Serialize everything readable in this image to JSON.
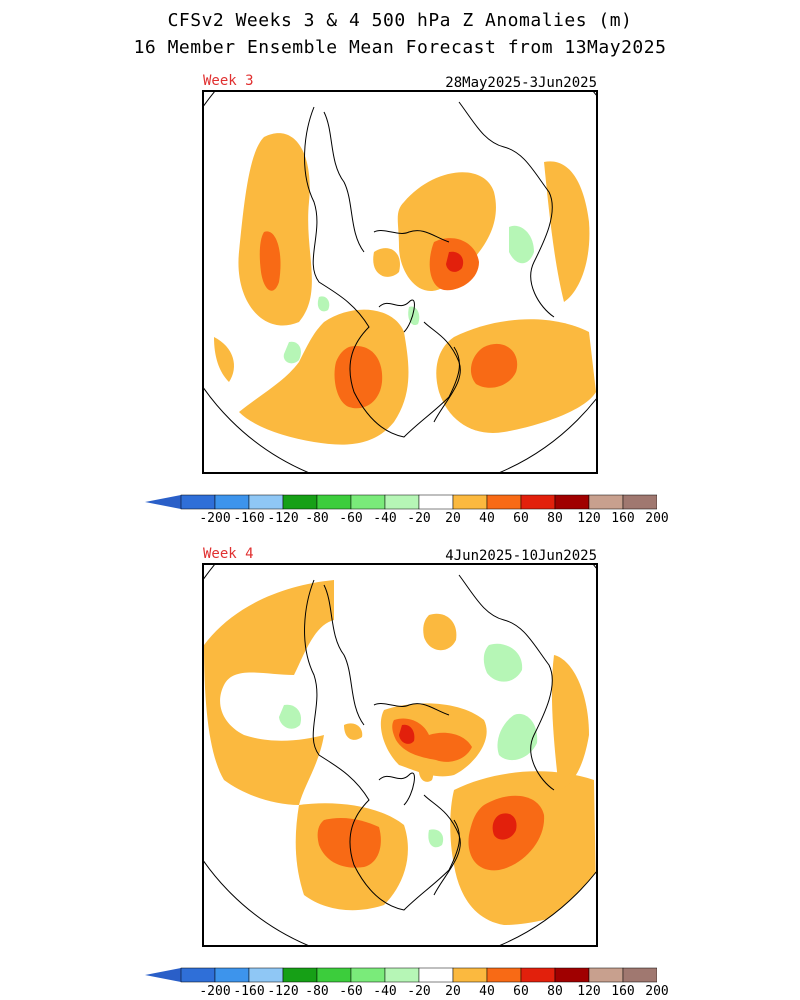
{
  "title_line1": "CFSv2 Weeks 3 & 4 500 hPa Z Anomalies (m)",
  "title_line2": "16 Member Ensemble Mean Forecast from 13May2025",
  "panels": [
    {
      "week_label": "Week 3",
      "date_range": "28May2025-3Jun2025"
    },
    {
      "week_label": "Week 4",
      "date_range": "4Jun2025-10Jun2025"
    }
  ],
  "colorbar": {
    "labels": [
      "-200",
      "-160",
      "-120",
      "-80",
      "-60",
      "-40",
      "-20",
      "20",
      "40",
      "60",
      "80",
      "120",
      "160",
      "200"
    ],
    "colors": [
      "#2f6fd8",
      "#3d94ec",
      "#8fc7f5",
      "#16a016",
      "#3ccd3c",
      "#7aeb7a",
      "#b6f6b6",
      "#ffffff",
      "#fbb93f",
      "#f86a15",
      "#e2200c",
      "#a00000",
      "#c8a08e",
      "#a07870"
    ],
    "low_end_color": "#2a5fc8",
    "high_end_color": "#6a4438"
  },
  "anomaly_colors": {
    "pos20": "#fbb93f",
    "pos40": "#f86a15",
    "pos60": "#e2200c",
    "neg20": "#b6f6b6",
    "neg40": "#7aeb7a"
  }
}
